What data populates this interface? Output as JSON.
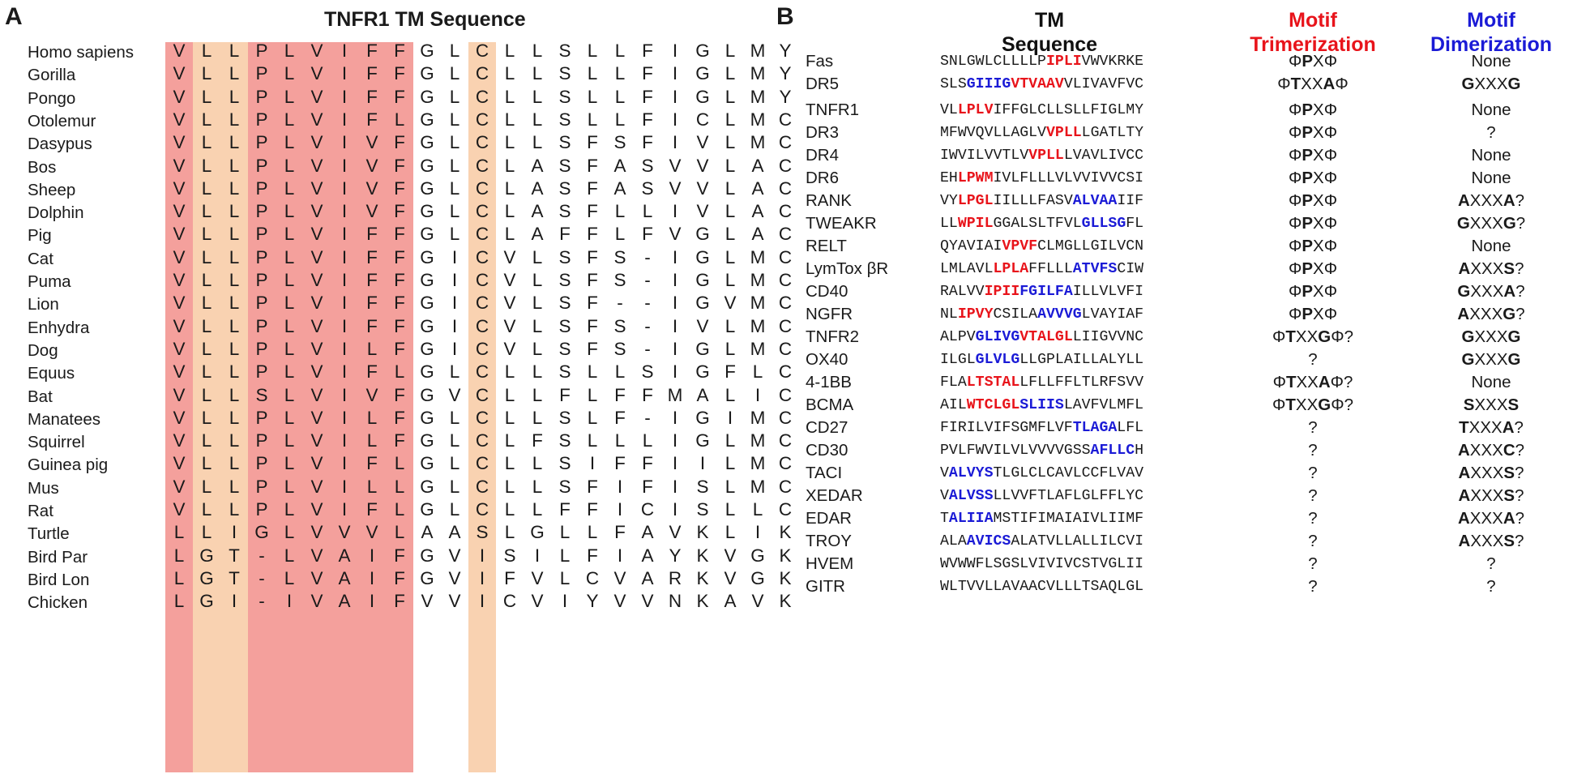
{
  "panel_a": {
    "letter": "A",
    "title": "TNFR1 TM Sequence",
    "colors": {
      "red_band": "#f4a09c",
      "orange_band": "#f9d2b1"
    },
    "highlight_columns": {
      "red": [
        0,
        3,
        4,
        5,
        6,
        7,
        8
      ],
      "orange": [
        1,
        2,
        11
      ]
    },
    "species": [
      {
        "name": "Homo sapiens",
        "seq": "VLLPLVIFFGLCLLSLLFIGLMY"
      },
      {
        "name": "Gorilla",
        "seq": "VLLPLVIFFGLCLLSLLFIGLMY"
      },
      {
        "name": "Pongo",
        "seq": "VLLPLVIFFGLCLLSLLFIGLMY"
      },
      {
        "name": "Otolemur",
        "seq": "VLLPLVIFLGLCLLSLLFICLMC"
      },
      {
        "name": "Dasypus",
        "seq": "VLLPLVIVFGLCLLSFSFIVLMC"
      },
      {
        "name": "Bos",
        "seq": "VLLPLVIVFGLCLASFASVVLAC"
      },
      {
        "name": "Sheep",
        "seq": "VLLPLVIVFGLCLASFASVVLAC"
      },
      {
        "name": "Dolphin",
        "seq": "VLLPLVIVFGLCLASFLLIVLAC"
      },
      {
        "name": "Pig",
        "seq": "VLLPLVIFFGLCLAFFLFVGLAC"
      },
      {
        "name": "Cat",
        "seq": "VLLPLVIFFGICVLSFS-IGLMC"
      },
      {
        "name": "Puma",
        "seq": "VLLPLVIFFGICVLSFS-IGLMC"
      },
      {
        "name": "Lion",
        "seq": "VLLPLVIFFGICVLSF--IGVMC"
      },
      {
        "name": "Enhydra",
        "seq": "VLLPLVIFFGICVLSFS-IVLMC"
      },
      {
        "name": "Dog",
        "seq": "VLLPLVILFGICVLSFS-IGLMC"
      },
      {
        "name": "Equus",
        "seq": "VLLPLVIFLGLCLLSLLSIGFLC"
      },
      {
        "name": "Bat",
        "seq": "VLLSLVIVFGVCLLFLFFMALIC"
      },
      {
        "name": "Manatees",
        "seq": "VLLPLVILFGLCLLSLF-IGIMC"
      },
      {
        "name": "Squirrel",
        "seq": "VLLPLVILFGLCLFSLLLIGLMC"
      },
      {
        "name": "Guinea pig",
        "seq": "VLLPLVIFLGLCLLSIFFIILMC"
      },
      {
        "name": "Mus",
        "seq": "VLLPLVILLGLCLLSFIFISLMC"
      },
      {
        "name": "Rat",
        "seq": "VLLPLVIFLGLCLLFFICISLLC"
      },
      {
        "name": "Turtle",
        "seq": "LLIGLVVVLAASLGLLFAVKLIK"
      },
      {
        "name": "Bird Par",
        "seq": "LGT-LVAIFGVISILFIAYKVGK"
      },
      {
        "name": "Bird Lon",
        "seq": "LGT-LVAIFGVIFVLCVARKVGK"
      },
      {
        "name": "Chicken",
        "seq": "LGI-IVAIFVVICVIYVVNKAVK"
      }
    ]
  },
  "panel_b": {
    "letter": "B",
    "headers": {
      "seq_line1": "TM",
      "seq_line2": "Sequence",
      "tri_line1": "Motif",
      "tri_line2": "Trimerization",
      "dim_line1": "Motif",
      "dim_line2": "Dimerization"
    },
    "colors": {
      "trimerization": "#e8141b",
      "dimerization": "#1b1bd6"
    },
    "proteins": [
      {
        "name": "Fas",
        "seq": [
          [
            "n",
            "SNLGWLCLLLLP"
          ],
          [
            "r",
            "IPLI"
          ],
          [
            "n",
            "VWVKRKE"
          ]
        ],
        "tri": "ΦPXΦ",
        "dim": "None"
      },
      {
        "name": "DR5",
        "seq": [
          [
            "n",
            "SLS"
          ],
          [
            "b",
            "GIIIG"
          ],
          [
            "r",
            "VTVAAV"
          ],
          [
            "n",
            "VLIVAVFVC"
          ]
        ],
        "tri": "ΦTXXAΦ",
        "dim": "GXXXG"
      },
      {
        "name": "TNFR1",
        "seq": [
          [
            "n",
            "VL"
          ],
          [
            "r",
            "LPLV"
          ],
          [
            "n",
            "IFFGLCLLSLLFIGLMY"
          ]
        ],
        "tri": "ΦPXΦ",
        "dim": "None"
      },
      {
        "name": "DR3",
        "seq": [
          [
            "n",
            "MFWVQVLLAGLV"
          ],
          [
            "r",
            "VPLL"
          ],
          [
            "n",
            "LGATLTY"
          ]
        ],
        "tri": "ΦPXΦ",
        "dim": "?"
      },
      {
        "name": "DR4",
        "seq": [
          [
            "n",
            "IWVILVVTLV"
          ],
          [
            "r",
            "VPLL"
          ],
          [
            "n",
            "LVAVLIVCC"
          ]
        ],
        "tri": "ΦPXΦ",
        "dim": "None"
      },
      {
        "name": "DR6",
        "seq": [
          [
            "n",
            "EH"
          ],
          [
            "r",
            "LPWM"
          ],
          [
            "n",
            "IVLFLLLVLVVIVVCSI"
          ]
        ],
        "tri": "ΦPXΦ",
        "dim": "None"
      },
      {
        "name": "RANK",
        "seq": [
          [
            "n",
            "VY"
          ],
          [
            "r",
            "LPGL"
          ],
          [
            "n",
            "IILLLFASV"
          ],
          [
            "b",
            "ALVAA"
          ],
          [
            "n",
            "IIF"
          ]
        ],
        "tri": "ΦPXΦ",
        "dim": "AXXXA?"
      },
      {
        "name": "TWEAKR",
        "seq": [
          [
            "n",
            "LL"
          ],
          [
            "r",
            "WPIL"
          ],
          [
            "n",
            "GGALSLTFVL"
          ],
          [
            "b",
            "GLLSG"
          ],
          [
            "n",
            "FL"
          ]
        ],
        "tri": "ΦPXΦ",
        "dim": "GXXXG?"
      },
      {
        "name": "RELT",
        "seq": [
          [
            "n",
            "QYAVIAI"
          ],
          [
            "r",
            "VPVF"
          ],
          [
            "n",
            "CLMGLLGILVCN"
          ]
        ],
        "tri": "ΦPXΦ",
        "dim": "None"
      },
      {
        "name": "LymTox βR",
        "seq": [
          [
            "n",
            "LMLAVL"
          ],
          [
            "r",
            "LPLA"
          ],
          [
            "n",
            "FFLLL"
          ],
          [
            "b",
            "ATVFS"
          ],
          [
            "n",
            "CIW"
          ]
        ],
        "tri": "ΦPXΦ",
        "dim": "AXXXS?"
      },
      {
        "name": "CD40",
        "seq": [
          [
            "n",
            "RALVV"
          ],
          [
            "r",
            "IPII"
          ],
          [
            "b",
            "FGILFA"
          ],
          [
            "n",
            "ILLVLVFI"
          ]
        ],
        "tri": "ΦPXΦ",
        "dim": "GXXXA?"
      },
      {
        "name": "NGFR",
        "seq": [
          [
            "n",
            "NL"
          ],
          [
            "r",
            "IPVY"
          ],
          [
            "n",
            "CSILA"
          ],
          [
            "b",
            "AVVVG"
          ],
          [
            "n",
            "LVAYIAF"
          ]
        ],
        "tri": "ΦPXΦ",
        "dim": "AXXXG?"
      },
      {
        "name": "TNFR2",
        "seq": [
          [
            "n",
            "ALPV"
          ],
          [
            "b",
            "GLIVG"
          ],
          [
            "r",
            "VTALGL"
          ],
          [
            "n",
            "LIIGVVNC"
          ]
        ],
        "tri": "ΦTXXGΦ?",
        "dim": "GXXXG"
      },
      {
        "name": "OX40",
        "seq": [
          [
            "n",
            "ILGL"
          ],
          [
            "b",
            "GLVLG"
          ],
          [
            "n",
            "LLGPLAILLALYLL"
          ]
        ],
        "tri": "?",
        "dim": "GXXXG"
      },
      {
        "name": "4-1BB",
        "seq": [
          [
            "n",
            "FLA"
          ],
          [
            "r",
            "LTSTAL"
          ],
          [
            "n",
            "LFLLFFLTLRFSVV"
          ]
        ],
        "tri": "ΦTXXAΦ?",
        "dim": "None"
      },
      {
        "name": "BCMA",
        "seq": [
          [
            "n",
            "AIL"
          ],
          [
            "r",
            "WTCLGL"
          ],
          [
            "b",
            "SLIIS"
          ],
          [
            "n",
            "LAVFVLMFL"
          ]
        ],
        "tri": "ΦTXXGΦ?",
        "dim": "SXXXS"
      },
      {
        "name": "CD27",
        "seq": [
          [
            "n",
            "FIRILVIFSGMFLVF"
          ],
          [
            "b",
            "TLAGA"
          ],
          [
            "n",
            "LFL"
          ]
        ],
        "tri": "?",
        "dim": "TXXXA?"
      },
      {
        "name": "CD30",
        "seq": [
          [
            "n",
            "PVLFWVILVLVVVVGSS"
          ],
          [
            "b",
            "AFLLC"
          ],
          [
            "n",
            "H"
          ]
        ],
        "tri": "?",
        "dim": "AXXXC?"
      },
      {
        "name": "TACI",
        "seq": [
          [
            "n",
            "V"
          ],
          [
            "b",
            "ALVYS"
          ],
          [
            "n",
            "TLGLCLCAVLCCFLVAV"
          ]
        ],
        "tri": "?",
        "dim": "AXXXS?"
      },
      {
        "name": "XEDAR",
        "seq": [
          [
            "n",
            "V"
          ],
          [
            "b",
            "ALVSS"
          ],
          [
            "n",
            "LLVVFTLAFLGLFFLYC"
          ]
        ],
        "tri": "?",
        "dim": "AXXXS?"
      },
      {
        "name": "EDAR",
        "seq": [
          [
            "n",
            "T"
          ],
          [
            "b",
            "ALIIA"
          ],
          [
            "n",
            "MSTIFIMAIAIVLIIMF"
          ]
        ],
        "tri": "?",
        "dim": "AXXXA?"
      },
      {
        "name": "TROY",
        "seq": [
          [
            "n",
            "ALA"
          ],
          [
            "b",
            "AVICS"
          ],
          [
            "n",
            "ALATVLLALLILCVI"
          ]
        ],
        "tri": "?",
        "dim": "AXXXS?"
      },
      {
        "name": "HVEM",
        "seq": [
          [
            "n",
            "WVWWFLSGSLVIVIVCSTVGLII"
          ]
        ],
        "tri": "?",
        "dim": "?"
      },
      {
        "name": "GITR",
        "seq": [
          [
            "n",
            "WLTVVLLAVAACVLLLTSAQLGL"
          ]
        ],
        "tri": "?",
        "dim": "?"
      }
    ]
  }
}
